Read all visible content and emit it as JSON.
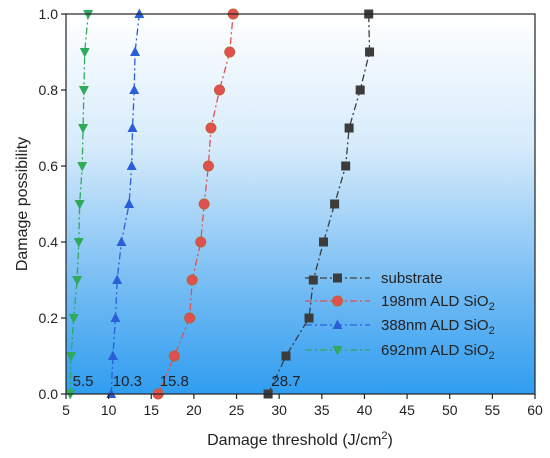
{
  "chart_data": {
    "type": "line",
    "xlabel": "Damage threshold (J/cm",
    "xlabel_sup": "2",
    "xlabel_end": ")",
    "ylabel": "Damage possibility",
    "xlim": [
      5,
      60
    ],
    "ylim": [
      0,
      1.0
    ],
    "xticks": [
      5,
      10,
      15,
      20,
      25,
      30,
      35,
      40,
      45,
      50,
      55,
      60
    ],
    "yticks": [
      0.0,
      0.2,
      0.4,
      0.6,
      0.8,
      1.0
    ],
    "xtick_labels": [
      "5",
      "10",
      "15",
      "20",
      "25",
      "30",
      "35",
      "40",
      "45",
      "50",
      "55",
      "60"
    ],
    "ytick_labels": [
      "0.0",
      "0.2",
      "0.4",
      "0.6",
      "0.8",
      "1.0"
    ],
    "grid": false,
    "legend_position": "bottom-right",
    "background": "gradient white (top) to blue (bottom)",
    "series": [
      {
        "name": "substrate",
        "marker": "square",
        "color": "#3c3c3c",
        "points": [
          [
            28.7,
            0.0
          ],
          [
            30.8,
            0.1
          ],
          [
            33.5,
            0.2
          ],
          [
            34.0,
            0.3
          ],
          [
            35.2,
            0.4
          ],
          [
            36.5,
            0.5
          ],
          [
            37.8,
            0.6
          ],
          [
            38.2,
            0.7
          ],
          [
            39.5,
            0.8
          ],
          [
            40.6,
            0.9
          ],
          [
            40.5,
            1.0
          ]
        ]
      },
      {
        "name_parts": [
          "198nm ALD SiO",
          "2"
        ],
        "marker": "circle",
        "color": "#e05050",
        "points": [
          [
            15.8,
            0.0
          ],
          [
            17.7,
            0.1
          ],
          [
            19.5,
            0.2
          ],
          [
            19.8,
            0.3
          ],
          [
            20.8,
            0.4
          ],
          [
            21.2,
            0.5
          ],
          [
            21.7,
            0.6
          ],
          [
            22.0,
            0.7
          ],
          [
            23.0,
            0.8
          ],
          [
            24.2,
            0.9
          ],
          [
            24.6,
            1.0
          ]
        ]
      },
      {
        "name_parts": [
          "388nm ALD SiO",
          "2"
        ],
        "marker": "triangle-up",
        "color": "#2b5fd9",
        "points": [
          [
            10.3,
            0.0
          ],
          [
            10.5,
            0.1
          ],
          [
            10.8,
            0.2
          ],
          [
            11.0,
            0.3
          ],
          [
            11.5,
            0.4
          ],
          [
            12.4,
            0.5
          ],
          [
            12.7,
            0.6
          ],
          [
            12.8,
            0.7
          ],
          [
            13.0,
            0.8
          ],
          [
            13.1,
            0.9
          ],
          [
            13.6,
            1.0
          ]
        ]
      },
      {
        "name_parts": [
          "692nm ALD SiO",
          "2"
        ],
        "marker": "triangle-down",
        "color": "#2eaa5a",
        "points": [
          [
            5.5,
            0.0
          ],
          [
            5.6,
            0.1
          ],
          [
            5.9,
            0.2
          ],
          [
            6.3,
            0.3
          ],
          [
            6.5,
            0.4
          ],
          [
            6.6,
            0.5
          ],
          [
            6.9,
            0.6
          ],
          [
            7.0,
            0.7
          ],
          [
            7.1,
            0.8
          ],
          [
            7.2,
            0.9
          ],
          [
            7.6,
            1.0
          ]
        ]
      }
    ],
    "annotations": [
      {
        "text": "5.5",
        "x": 7.0,
        "y": 0.0
      },
      {
        "text": "10.3",
        "x": 12.2,
        "y": 0.0
      },
      {
        "text": "15.8",
        "x": 17.7,
        "y": 0.0
      },
      {
        "text": "28.7",
        "x": 30.8,
        "y": 0.0
      }
    ]
  }
}
